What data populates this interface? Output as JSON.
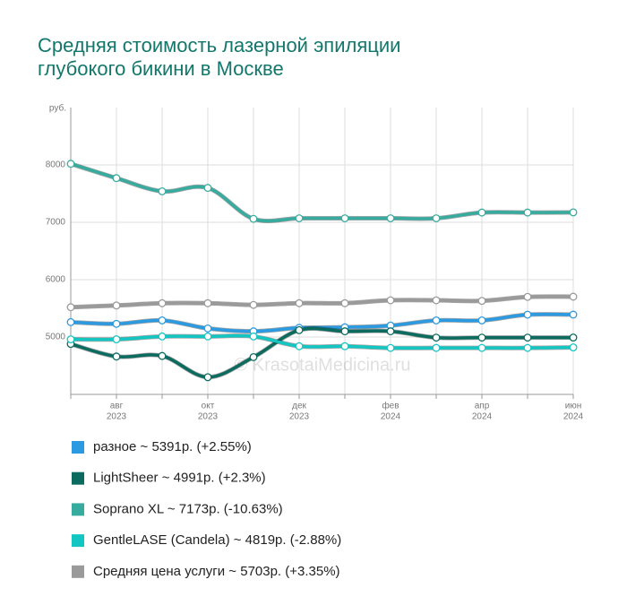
{
  "chart_data": {
    "type": "line",
    "title": [
      "Средняя стоимость лазерной эпиляции",
      "глубокого бикини в Москве"
    ],
    "y_label": "руб.",
    "watermark": "© KrasotaiMedicina.ru",
    "categories": [
      null,
      [
        "авг",
        "2023"
      ],
      null,
      [
        "окт",
        "2023"
      ],
      null,
      [
        "дек",
        "2023"
      ],
      null,
      [
        "фев",
        "2024"
      ],
      null,
      [
        "апр",
        "2024"
      ],
      null,
      [
        "июн",
        "2024"
      ]
    ],
    "ylim": [
      4000,
      9000
    ],
    "yticks": [
      5000,
      6000,
      7000,
      8000
    ],
    "grid": true,
    "series": [
      {
        "name": "разное ~ 5391р. (+2.55%)",
        "color": "#2b9ae0",
        "values": [
          5260,
          5230,
          5290,
          5150,
          5100,
          5160,
          5170,
          5200,
          5290,
          5290,
          5390,
          5391
        ]
      },
      {
        "name": "LightSheer ~ 4991р. (+2.3%)",
        "color": "#0b6b5f",
        "values": [
          4880,
          4660,
          4670,
          4300,
          4650,
          5120,
          5100,
          5100,
          4990,
          4990,
          4990,
          4991
        ]
      },
      {
        "name": "Soprano XL ~ 7173р. (-10.63%)",
        "color": "#38ab9f",
        "values": [
          8020,
          7770,
          7540,
          7600,
          7060,
          7070,
          7070,
          7070,
          7070,
          7170,
          7170,
          7173
        ]
      },
      {
        "name": "GentleLASE (Candela) ~ 4819р. (-2.88%)",
        "color": "#14c6c2",
        "values": [
          4960,
          4960,
          5010,
          5010,
          5010,
          4840,
          4840,
          4810,
          4810,
          4810,
          4810,
          4819
        ]
      },
      {
        "name": "Средняя цена услуги ~ 5703р. (+3.35%)",
        "color": "#9a9a9a",
        "values": [
          5520,
          5550,
          5590,
          5590,
          5560,
          5590,
          5590,
          5640,
          5640,
          5630,
          5700,
          5703
        ]
      }
    ]
  }
}
